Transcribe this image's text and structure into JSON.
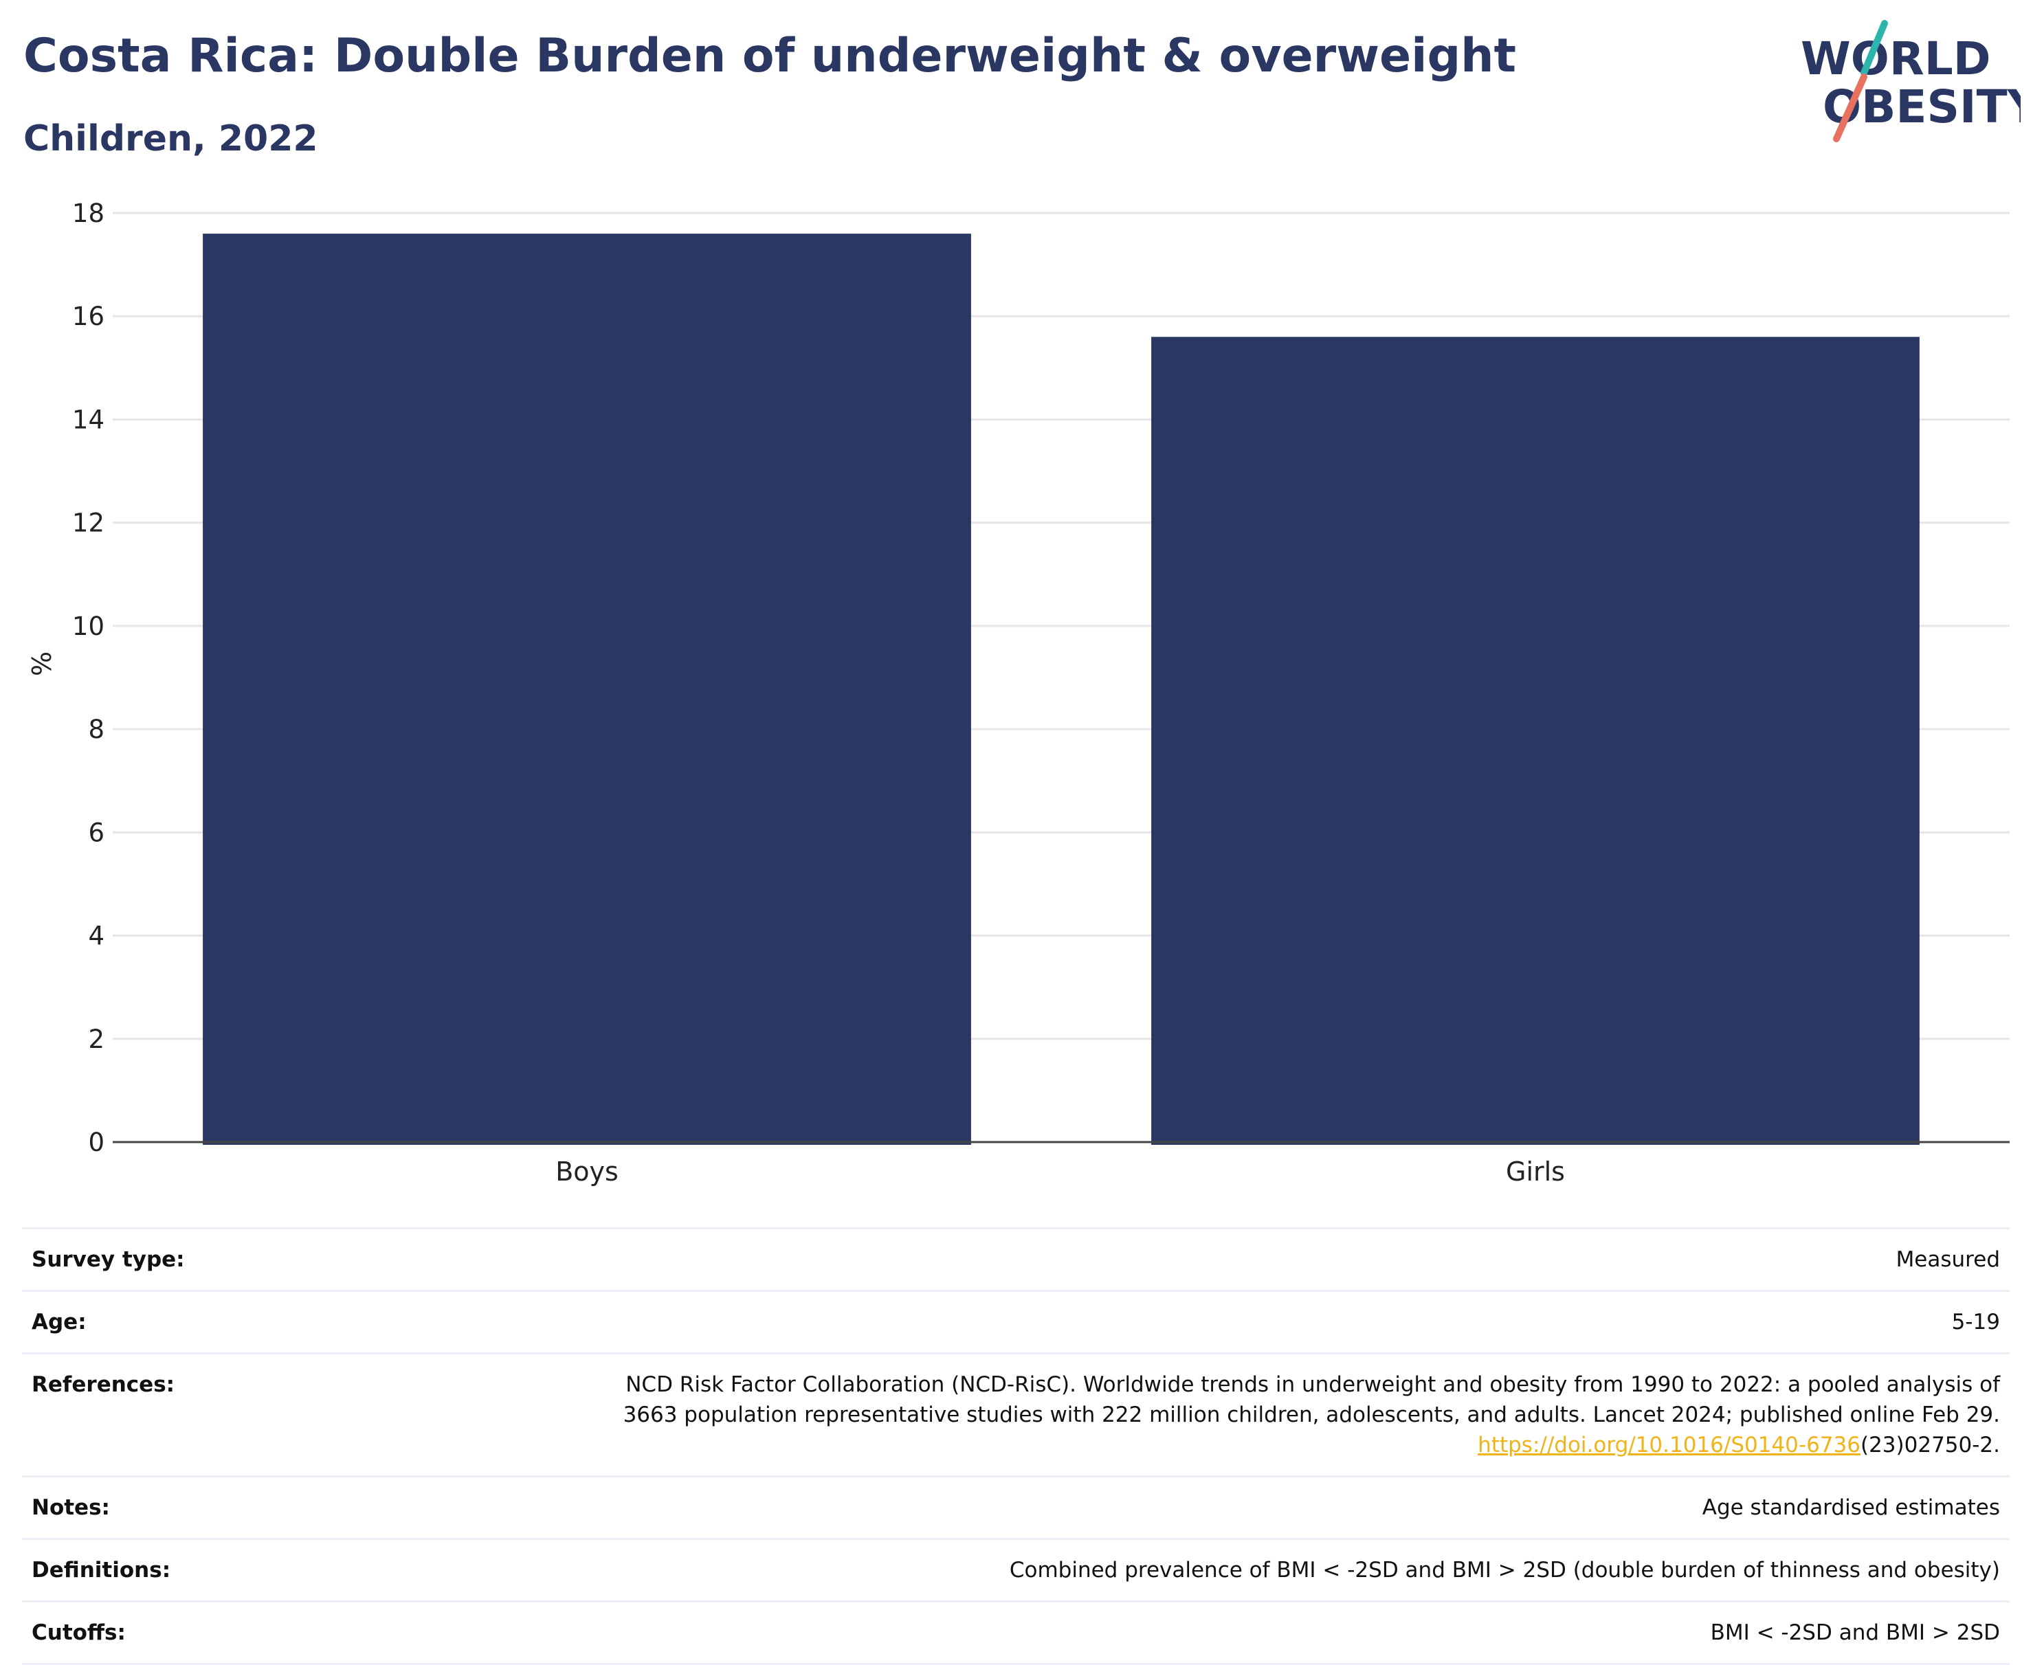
{
  "header": {
    "title": "Costa Rica: Double Burden of underweight & overweight",
    "subtitle": "Children, 2022"
  },
  "logo": {
    "line1": "WORLD",
    "line2": "OBESITY",
    "colors": {
      "text": "#2b3763",
      "slash_top": "#2bb5ad",
      "slash_bottom": "#e8705e"
    }
  },
  "colors": {
    "bar": "#2b3763",
    "grid": "#e6e6e6",
    "axis": "#444444",
    "link": "#f0b31a"
  },
  "chart_data": {
    "type": "bar",
    "categories": [
      "Boys",
      "Girls"
    ],
    "values": [
      17.6,
      15.6
    ],
    "title": "Costa Rica: Double Burden of underweight & overweight",
    "subtitle": "Children, 2022",
    "xlabel": "",
    "ylabel": "%",
    "ylim": [
      0,
      18
    ],
    "yticks": [
      0,
      2,
      4,
      6,
      8,
      10,
      12,
      14,
      16,
      18
    ],
    "grid": true,
    "legend": "none"
  },
  "info": {
    "survey_type": {
      "label": "Survey type:",
      "value": "Measured"
    },
    "age": {
      "label": "Age:",
      "value": "5-19"
    },
    "references": {
      "label": "References:",
      "line1": "NCD Risk Factor Collaboration (NCD-RisC). Worldwide trends in underweight and obesity from 1990 to 2022: a pooled analysis of",
      "line2": "3663 population representative studies with 222 million children, adolescents, and adults. Lancet 2024; published online Feb 29.",
      "link": "https://doi.org/10.1016/S0140-6736",
      "suffix": "(23)02750-2."
    },
    "notes": {
      "label": "Notes:",
      "value": "Age standardised estimates"
    },
    "definitions": {
      "label": "Definitions:",
      "value": "Combined prevalence of BMI < -2SD and BMI > 2SD (double burden of thinness and obesity)"
    },
    "cutoffs": {
      "label": "Cutoffs:",
      "value": "BMI < -2SD and BMI > 2SD"
    }
  }
}
